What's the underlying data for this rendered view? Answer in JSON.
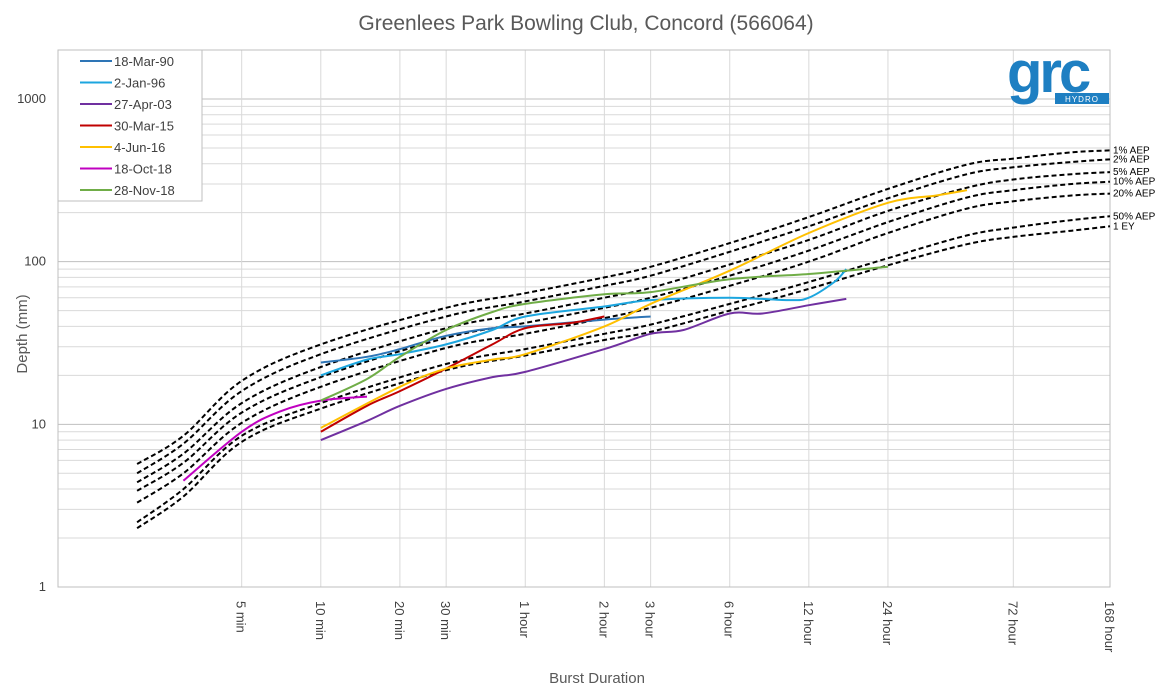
{
  "chart_data": {
    "type": "line",
    "title": "Greenlees Park Bowling Club, Concord (566064)",
    "xlabel": "Burst Duration",
    "ylabel": "Depth (mm)",
    "x_scale": "log",
    "y_scale": "log",
    "xlim_minutes": [
      1,
      10080
    ],
    "ylim": [
      1,
      2000
    ],
    "grid": true,
    "legend_position": "top-left",
    "logo": {
      "text": "grc",
      "subtext": "HYDRO",
      "color": "#1e7fc2"
    },
    "x_ticks": [
      {
        "label": "5 min",
        "minutes": 5
      },
      {
        "label": "10 min",
        "minutes": 10
      },
      {
        "label": "20 min",
        "minutes": 20
      },
      {
        "label": "30 min",
        "minutes": 30
      },
      {
        "label": "1 hour",
        "minutes": 60
      },
      {
        "label": "2 hour",
        "minutes": 120
      },
      {
        "label": "3 hour",
        "minutes": 180
      },
      {
        "label": "6 hour",
        "minutes": 360
      },
      {
        "label": "12 hour",
        "minutes": 720
      },
      {
        "label": "24 hour",
        "minutes": 1440
      },
      {
        "label": "72 hour",
        "minutes": 4320
      },
      {
        "label": "168 hour",
        "minutes": 10080
      }
    ],
    "y_ticks": [
      {
        "label": "1",
        "value": 1
      },
      {
        "label": "10",
        "value": 10
      },
      {
        "label": "100",
        "value": 100
      },
      {
        "label": "1000",
        "value": 1000
      }
    ],
    "series": [
      {
        "name": "18-Mar-90",
        "color": "#2e75b6",
        "points": [
          [
            10,
            24
          ],
          [
            15,
            26
          ],
          [
            20,
            29
          ],
          [
            30,
            35
          ],
          [
            45,
            39
          ],
          [
            60,
            40
          ],
          [
            120,
            44
          ],
          [
            180,
            46
          ]
        ]
      },
      {
        "name": "2-Jan-96",
        "color": "#1ca6df",
        "points": [
          [
            10,
            20
          ],
          [
            15,
            25
          ],
          [
            20,
            27
          ],
          [
            30,
            31
          ],
          [
            45,
            38
          ],
          [
            60,
            46
          ],
          [
            120,
            53
          ],
          [
            180,
            58
          ],
          [
            360,
            60
          ],
          [
            600,
            58
          ],
          [
            720,
            60
          ],
          [
            900,
            75
          ],
          [
            1000,
            90
          ]
        ]
      },
      {
        "name": "27-Apr-03",
        "color": "#7030a0",
        "points": [
          [
            10,
            8
          ],
          [
            15,
            10.5
          ],
          [
            20,
            13
          ],
          [
            30,
            16.5
          ],
          [
            45,
            19.5
          ],
          [
            60,
            21
          ],
          [
            120,
            29
          ],
          [
            180,
            36
          ],
          [
            240,
            38
          ],
          [
            360,
            48
          ],
          [
            480,
            48
          ],
          [
            720,
            54
          ],
          [
            1000,
            59
          ]
        ]
      },
      {
        "name": "30-Mar-15",
        "color": "#c00000",
        "points": [
          [
            10,
            9
          ],
          [
            15,
            13
          ],
          [
            20,
            16
          ],
          [
            30,
            22
          ],
          [
            45,
            31
          ],
          [
            60,
            39
          ],
          [
            90,
            42
          ],
          [
            120,
            46
          ]
        ]
      },
      {
        "name": "4-Jun-16",
        "color": "#ffc000",
        "points": [
          [
            10,
            9.5
          ],
          [
            20,
            17
          ],
          [
            30,
            22
          ],
          [
            45,
            25
          ],
          [
            60,
            27
          ],
          [
            120,
            40
          ],
          [
            180,
            55
          ],
          [
            360,
            88
          ],
          [
            720,
            150
          ],
          [
            1440,
            230
          ],
          [
            2200,
            255
          ],
          [
            2880,
            275
          ]
        ]
      },
      {
        "name": "18-Oct-18",
        "color": "#c000c0",
        "points": [
          [
            3,
            4.5
          ],
          [
            5,
            9
          ],
          [
            7,
            12
          ],
          [
            10,
            14
          ],
          [
            15,
            14.8
          ]
        ]
      },
      {
        "name": "28-Nov-18",
        "color": "#70ad47",
        "points": [
          [
            10,
            14
          ],
          [
            15,
            19
          ],
          [
            20,
            26
          ],
          [
            30,
            38
          ],
          [
            45,
            49
          ],
          [
            60,
            55
          ],
          [
            120,
            63
          ],
          [
            180,
            65
          ],
          [
            360,
            78
          ],
          [
            720,
            84
          ],
          [
            1440,
            93
          ]
        ]
      }
    ],
    "design_curves": [
      {
        "name": "1% AEP",
        "points": [
          [
            2,
            5.7
          ],
          [
            3,
            8.5
          ],
          [
            5,
            18.5
          ],
          [
            10,
            31
          ],
          [
            30,
            52
          ],
          [
            60,
            64
          ],
          [
            120,
            80
          ],
          [
            180,
            93
          ],
          [
            360,
            130
          ],
          [
            720,
            188
          ],
          [
            1440,
            280
          ],
          [
            2880,
            395
          ],
          [
            4320,
            430
          ],
          [
            7200,
            470
          ],
          [
            10080,
            483
          ]
        ]
      },
      {
        "name": "2% AEP",
        "points": [
          [
            2,
            5.0
          ],
          [
            3,
            7.6
          ],
          [
            5,
            16
          ],
          [
            10,
            27
          ],
          [
            30,
            46
          ],
          [
            60,
            57
          ],
          [
            120,
            71
          ],
          [
            180,
            82
          ],
          [
            360,
            115
          ],
          [
            720,
            165
          ],
          [
            1440,
            245
          ],
          [
            2880,
            345
          ],
          [
            4320,
            380
          ],
          [
            7200,
            410
          ],
          [
            10080,
            425
          ]
        ]
      },
      {
        "name": "5% AEP",
        "points": [
          [
            2,
            4.4
          ],
          [
            3,
            6.6
          ],
          [
            5,
            13.5
          ],
          [
            10,
            22.5
          ],
          [
            30,
            39
          ],
          [
            60,
            48
          ],
          [
            120,
            60
          ],
          [
            180,
            69
          ],
          [
            360,
            96
          ],
          [
            720,
            136
          ],
          [
            1440,
            205
          ],
          [
            2880,
            285
          ],
          [
            4320,
            320
          ],
          [
            7200,
            345
          ],
          [
            10080,
            355
          ]
        ]
      },
      {
        "name": "10% AEP",
        "points": [
          [
            2,
            3.9
          ],
          [
            3,
            5.8
          ],
          [
            5,
            11.8
          ],
          [
            10,
            19.5
          ],
          [
            30,
            34
          ],
          [
            60,
            42
          ],
          [
            120,
            52
          ],
          [
            180,
            60
          ],
          [
            360,
            82
          ],
          [
            720,
            117
          ],
          [
            1440,
            175
          ],
          [
            2880,
            248
          ],
          [
            4320,
            275
          ],
          [
            7200,
            300
          ],
          [
            10080,
            310
          ]
        ]
      },
      {
        "name": "20% AEP",
        "points": [
          [
            2,
            3.3
          ],
          [
            3,
            5.0
          ],
          [
            5,
            10.2
          ],
          [
            10,
            17
          ],
          [
            30,
            29.5
          ],
          [
            60,
            36
          ],
          [
            120,
            45
          ],
          [
            180,
            52
          ],
          [
            360,
            71
          ],
          [
            720,
            100
          ],
          [
            1440,
            150
          ],
          [
            2880,
            212
          ],
          [
            4320,
            235
          ],
          [
            7200,
            255
          ],
          [
            10080,
            262
          ]
        ]
      },
      {
        "name": "50% AEP",
        "points": [
          [
            2,
            2.5
          ],
          [
            3,
            4.0
          ],
          [
            5,
            8.5
          ],
          [
            10,
            13.5
          ],
          [
            30,
            23.5
          ],
          [
            60,
            29
          ],
          [
            120,
            36
          ],
          [
            180,
            41
          ],
          [
            360,
            55
          ],
          [
            720,
            75
          ],
          [
            1440,
            105
          ],
          [
            2880,
            145
          ],
          [
            4320,
            162
          ],
          [
            7200,
            180
          ],
          [
            10080,
            190
          ]
        ]
      },
      {
        "name": "1 EY",
        "points": [
          [
            2,
            2.3
          ],
          [
            3,
            3.6
          ],
          [
            5,
            7.8
          ],
          [
            10,
            12.5
          ],
          [
            30,
            21.5
          ],
          [
            60,
            26.5
          ],
          [
            120,
            33
          ],
          [
            180,
            37
          ],
          [
            360,
            50
          ],
          [
            720,
            68
          ],
          [
            1440,
            95
          ],
          [
            2880,
            128
          ],
          [
            4320,
            142
          ],
          [
            7200,
            155
          ],
          [
            10080,
            165
          ]
        ]
      }
    ]
  }
}
